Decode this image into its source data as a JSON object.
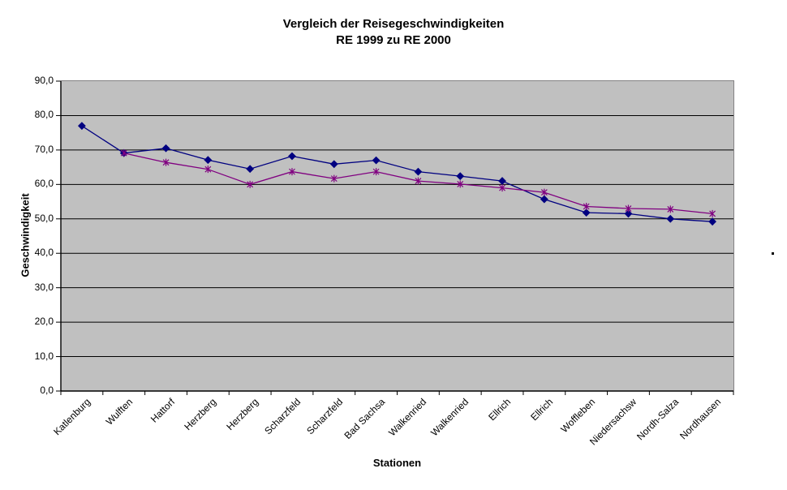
{
  "title": {
    "line1": "Vergleich der Reisegeschwindigkeiten",
    "line2": "RE 1999 zu RE 2000"
  },
  "axes": {
    "y_title": "Geschwindigkeit",
    "x_title": "Stationen"
  },
  "chart_data": {
    "type": "line",
    "title": "Vergleich der Reisegeschwindigkeiten RE 1999 zu RE 2000",
    "xlabel": "Stationen",
    "ylabel": "Geschwindigkeit",
    "ylim": [
      0,
      90
    ],
    "y_tick_step": 10,
    "y_tick_labels": [
      "0,0",
      "10,0",
      "20,0",
      "30,0",
      "40,0",
      "50,0",
      "60,0",
      "70,0",
      "80,0",
      "90,0"
    ],
    "grid": true,
    "legend_position": "none",
    "plot_background": "#c0c0c0",
    "gridline_color": "#000000",
    "border_color": "#848284",
    "categories": [
      "Katlenburg",
      "Wulften",
      "Hattorf",
      "Herzberg",
      "Herzberg",
      "Scharzfeld",
      "Scharzfeld",
      "Bad Sachsa",
      "Walkenried",
      "Walkenried",
      "Ellrich",
      "Ellrich",
      "Woffleben",
      "Niedersachsw",
      "Nordh-Salza",
      "Nordhausen"
    ],
    "series": [
      {
        "name": "RE 1999",
        "color": "#000080",
        "marker": "diamond",
        "values": [
          77.0,
          69.1,
          70.5,
          67.1,
          64.5,
          68.2,
          65.9,
          67.0,
          63.7,
          62.4,
          61.0,
          55.7,
          51.8,
          51.5,
          50.0,
          49.2
        ]
      },
      {
        "name": "RE 2000",
        "color": "#800080",
        "marker": "star",
        "values": [
          null,
          69.1,
          66.4,
          64.4,
          60.0,
          63.7,
          61.7,
          63.7,
          61.0,
          60.1,
          59.0,
          57.7,
          53.6,
          53.0,
          52.8,
          51.5
        ]
      }
    ]
  }
}
